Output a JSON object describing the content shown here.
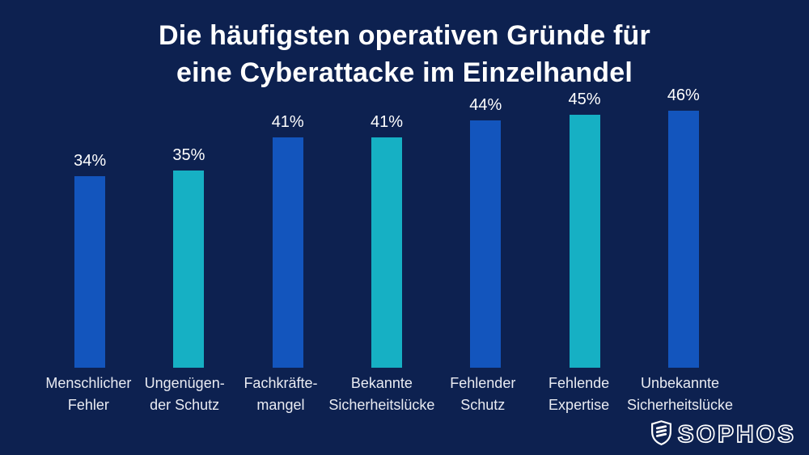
{
  "title": {
    "line1": "Die häufigsten operativen Gründe für",
    "line2": "eine Cyberattacke im Einzelhandel"
  },
  "chart_data": {
    "type": "bar",
    "title": "Die häufigsten operativen Gründe für eine Cyberattacke im Einzelhandel",
    "categories": [
      "Menschlicher\nFehler",
      "Ungenügen-\nder Schutz",
      "Fachkräfte-\nmangel",
      "Bekannte\nSicherheitslücke",
      "Fehlender\nSchutz",
      "Fehlende\nExpertise",
      "Unbekannte\nSicherheitslücke"
    ],
    "values": [
      34,
      35,
      41,
      41,
      44,
      45,
      46
    ],
    "value_labels": [
      "34%",
      "35%",
      "41%",
      "41%",
      "44%",
      "45%",
      "46%"
    ],
    "bar_colors": [
      "#1355BD",
      "#16B0C4",
      "#1355BD",
      "#16B0C4",
      "#1355BD",
      "#16B0C4",
      "#1355BD"
    ],
    "xlabel": "",
    "ylabel": "",
    "ylim": [
      0,
      50
    ],
    "grid": false,
    "legend": false,
    "background_color": "#0d2150",
    "value_label_color": "#ffffff",
    "category_label_color": "#e9ebf2"
  },
  "footer": {
    "logo_text": "SOPHOS"
  }
}
